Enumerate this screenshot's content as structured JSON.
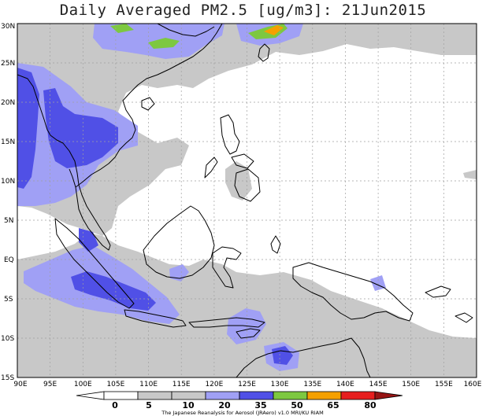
{
  "title": "Daily Averaged PM2.5 [ug/m3]: 21Jun2015",
  "credit": "The Japanese Reanalysis for Aerosol (JRAero) v1.0 MRI/KU RIAM",
  "lon_labels": [
    "90E",
    "95E",
    "100E",
    "105E",
    "110E",
    "115E",
    "120E",
    "125E",
    "130E",
    "135E",
    "140E",
    "145E",
    "150E",
    "155E",
    "160E"
  ],
  "lat_labels": [
    "30N",
    "25N",
    "20N",
    "15N",
    "10N",
    "5N",
    "EQ",
    "5S",
    "10S",
    "15S"
  ],
  "colorbar": {
    "levels": [
      "0",
      "5",
      "10",
      "20",
      "35",
      "50",
      "65",
      "80"
    ],
    "colors": [
      "#ffffff",
      "#c8c8c8",
      "#a0a0f5",
      "#5050e6",
      "#7dc840",
      "#f5a000",
      "#e61e1e",
      "#961414"
    ]
  },
  "colors": {
    "gray": "#c8c8c8",
    "light_blue": "#a0a0f5",
    "blue": "#5050e6",
    "green": "#7dc840",
    "orange": "#f5a000",
    "grid": "#a0a0a0",
    "coast": "#000000"
  }
}
